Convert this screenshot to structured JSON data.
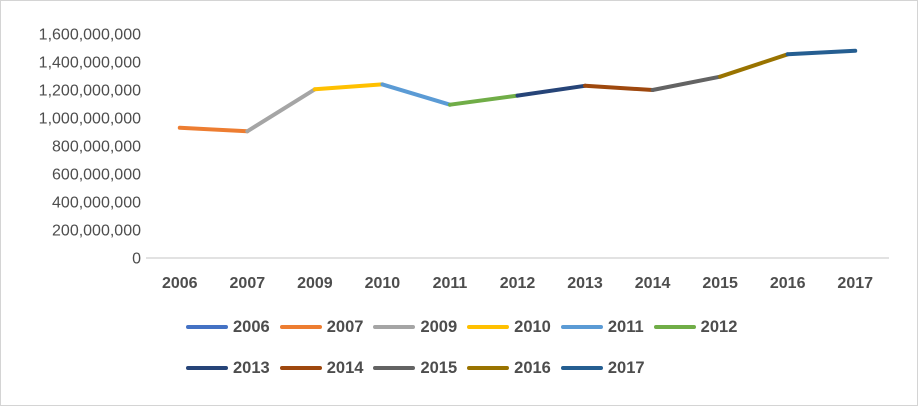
{
  "chart_data": {
    "type": "line",
    "title": "",
    "xlabel": "",
    "ylabel": "",
    "categories": [
      "2006",
      "2007",
      "2009",
      "2010",
      "2011",
      "2012",
      "2013",
      "2014",
      "2015",
      "2016",
      "2017"
    ],
    "series": [
      {
        "name": "2006",
        "color": "#4472C4",
        "value": 930000000
      },
      {
        "name": "2007",
        "color": "#ED7D31",
        "value": 905000000
      },
      {
        "name": "2009",
        "color": "#A5A5A5",
        "value": 1205000000
      },
      {
        "name": "2010",
        "color": "#FFC000",
        "value": 1240000000
      },
      {
        "name": "2011",
        "color": "#5B9BD5",
        "value": 1095000000
      },
      {
        "name": "2012",
        "color": "#70AD47",
        "value": 1160000000
      },
      {
        "name": "2013",
        "color": "#264478",
        "value": 1230000000
      },
      {
        "name": "2014",
        "color": "#9E480E",
        "value": 1200000000
      },
      {
        "name": "2015",
        "color": "#636363",
        "value": 1295000000
      },
      {
        "name": "2016",
        "color": "#997300",
        "value": 1455000000
      },
      {
        "name": "2017",
        "color": "#255E91",
        "value": 1480000000
      }
    ],
    "segment_rule": "each connecting segment is colored with the right-hand year's series color",
    "ylim": [
      0,
      1600000000
    ],
    "ytick_step": 200000000,
    "ytick_labels": [
      "0",
      "200,000,000",
      "400,000,000",
      "600,000,000",
      "800,000,000",
      "1,000,000,000",
      "1,200,000,000",
      "1,400,000,000",
      "1,600,000,000"
    ],
    "grid": false,
    "legend_position": "bottom",
    "legend_rows": [
      [
        "2006",
        "2007",
        "2009",
        "2010",
        "2011",
        "2012"
      ],
      [
        "2013",
        "2014",
        "2015",
        "2016",
        "2017"
      ]
    ]
  },
  "style": {
    "text_color": "#4d4d4d",
    "axis_line_color": "#d9d9d9",
    "background": "#ffffff",
    "border_color": "#d4d4d4"
  },
  "layout_values": {
    "tick_font_px": "16",
    "legend_font_px": "16.5"
  }
}
